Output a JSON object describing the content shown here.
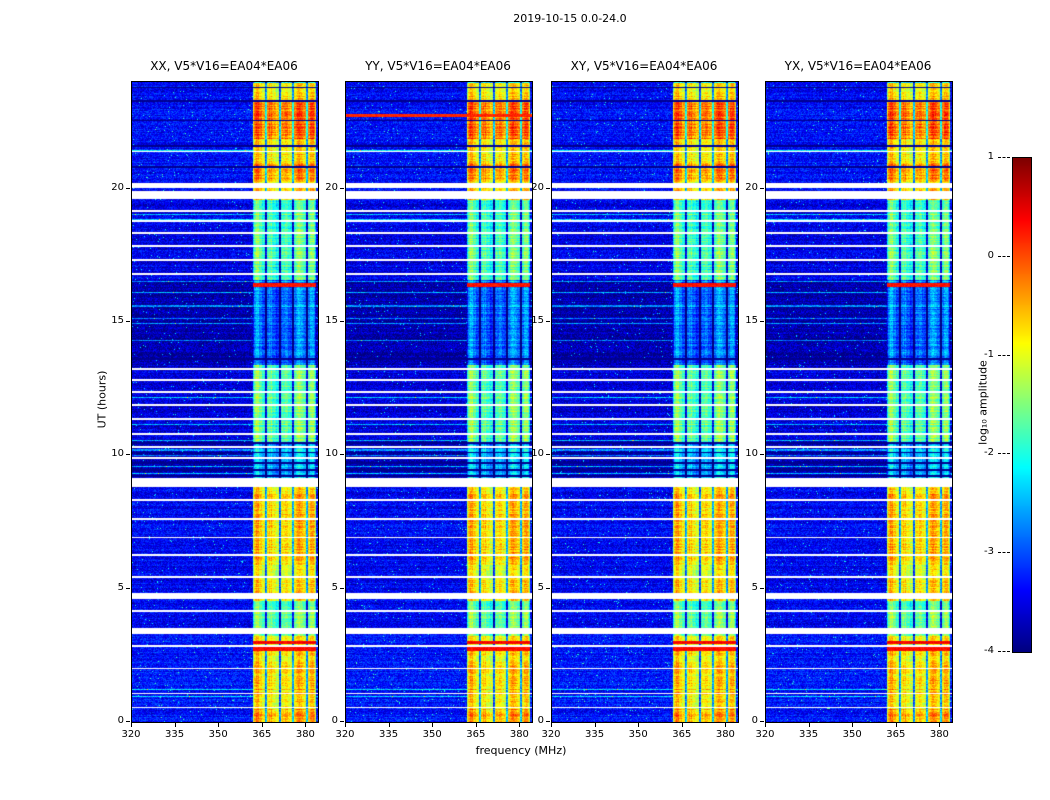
{
  "chart_data": {
    "type": "heatmap",
    "title": "2019-10-15 0.0-24.0",
    "xlabel": "frequency (MHz)",
    "ylabel": "UT (hours)",
    "xlim": [
      320,
      384
    ],
    "ylim": [
      0,
      24
    ],
    "xticks": [
      320,
      335,
      350,
      365,
      380
    ],
    "yticks": [
      0,
      5,
      10,
      15,
      20
    ],
    "panels": [
      {
        "key": "XX",
        "title": "XX, V5*V16=EA04*EA06"
      },
      {
        "key": "YY",
        "title": "YY, V5*V16=EA04*EA06"
      },
      {
        "key": "XY",
        "title": "XY, V5*V16=EA04*EA06"
      },
      {
        "key": "YX",
        "title": "YX, V5*V16=EA04*EA06"
      }
    ],
    "colorbar": {
      "label": "log₁₀ amplitude",
      "colormap": "jet",
      "vmin": -4,
      "vmax": 1,
      "ticks": [
        1,
        0,
        -1,
        -2,
        -3,
        -4
      ],
      "tick_labels": [
        "1",
        "0",
        "-1",
        "-2",
        "-3",
        "-4"
      ]
    },
    "rfi_band": {
      "f_start": 361.5,
      "f_end": 383.2
    },
    "band_profile": [
      [
        0,
        0.5,
        -0.7
      ],
      [
        0.5,
        3.25,
        -0.85
      ],
      [
        3.25,
        4.55,
        -1.7
      ],
      [
        4.55,
        9.0,
        -0.95
      ],
      [
        9.0,
        10.5,
        -2.6
      ],
      [
        10.5,
        13.4,
        -1.75
      ],
      [
        13.4,
        16.6,
        -2.9
      ],
      [
        16.6,
        19.6,
        -1.85
      ],
      [
        19.6,
        24,
        -0.85
      ]
    ],
    "bg_profile": [
      [
        0,
        3.25,
        -3.3
      ],
      [
        3.25,
        9.0,
        -3.4
      ],
      [
        9.0,
        10.5,
        -3.75
      ],
      [
        10.5,
        13.4,
        -3.55
      ],
      [
        13.4,
        16.6,
        -3.8
      ],
      [
        16.6,
        19.6,
        -3.5
      ],
      [
        19.6,
        24,
        -3.35
      ]
    ],
    "boosts": [
      [
        21.9,
        23.3,
        0.55
      ],
      [
        20.3,
        20.95,
        0.35
      ],
      [
        6.1,
        8.6,
        0.18
      ],
      [
        0.0,
        0.5,
        0.1
      ]
    ],
    "gaps": [
      [
        0.55,
        0.05
      ],
      [
        1.05,
        0.05
      ],
      [
        2.0,
        0.05
      ],
      [
        2.85,
        0.06
      ],
      [
        3.32,
        0.22
      ],
      [
        4.15,
        0.07
      ],
      [
        4.62,
        0.25
      ],
      [
        5.4,
        0.08
      ],
      [
        6.25,
        0.07
      ],
      [
        6.9,
        0.07
      ],
      [
        7.6,
        0.07
      ],
      [
        8.32,
        0.07
      ],
      [
        8.85,
        0.3
      ],
      [
        9.88,
        0.06
      ],
      [
        10.3,
        0.06
      ],
      [
        10.78,
        0.07
      ],
      [
        11.33,
        0.07
      ],
      [
        11.88,
        0.07
      ],
      [
        12.35,
        0.07
      ],
      [
        12.8,
        0.07
      ],
      [
        13.22,
        0.07
      ],
      [
        16.78,
        0.07
      ],
      [
        17.32,
        0.07
      ],
      [
        17.85,
        0.07
      ],
      [
        18.32,
        0.07
      ],
      [
        18.77,
        0.07
      ],
      [
        19.15,
        0.07
      ],
      [
        19.62,
        0.3
      ],
      [
        20.05,
        0.18
      ],
      [
        21.38,
        0.07
      ]
    ],
    "dark_rows": [
      [
        9.2,
        0.07
      ],
      [
        9.45,
        0.07
      ],
      [
        9.7,
        0.06
      ],
      [
        10.1,
        0.06
      ],
      [
        10.45,
        0.06
      ],
      [
        13.6,
        0.05
      ],
      [
        20.8,
        0.06
      ],
      [
        21.6,
        0.06
      ],
      [
        22.55,
        0.06
      ],
      [
        23.28,
        0.06
      ],
      [
        23.78,
        0.05
      ]
    ],
    "cyan_rows": [
      [
        9.32,
        0.05
      ],
      [
        9.58,
        0.05
      ],
      [
        10.2,
        0.05
      ],
      [
        14.3,
        0.05
      ],
      [
        14.95,
        0.05
      ],
      [
        15.6,
        0.05
      ],
      [
        16.1,
        0.05
      ]
    ],
    "hot_band_rows": [
      [
        2.7,
        0.12,
        0.35
      ],
      [
        2.94,
        0.12,
        0.4
      ],
      [
        16.34,
        0.15,
        0.3
      ]
    ],
    "full_hot_rows_panel": 1,
    "full_hot_rows": [
      [
        22.72,
        0.1,
        0.2
      ]
    ]
  }
}
